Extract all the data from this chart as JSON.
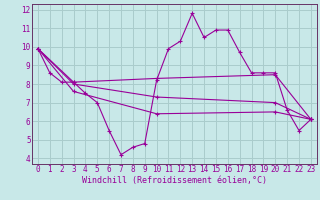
{
  "xlabel": "Windchill (Refroidissement éolien,°C)",
  "background_color": "#c8e8e8",
  "grid_color": "#aacccc",
  "line_color": "#990099",
  "spine_color": "#663366",
  "xlim": [
    -0.5,
    23.5
  ],
  "ylim": [
    3.7,
    12.3
  ],
  "yticks": [
    4,
    5,
    6,
    7,
    8,
    9,
    10,
    11,
    12
  ],
  "xticks": [
    0,
    1,
    2,
    3,
    4,
    5,
    6,
    7,
    8,
    9,
    10,
    11,
    12,
    13,
    14,
    15,
    16,
    17,
    18,
    19,
    20,
    21,
    22,
    23
  ],
  "lines": [
    {
      "x": [
        0,
        1,
        2,
        3,
        4,
        5,
        6,
        7,
        8,
        9,
        10,
        11,
        12,
        13,
        14,
        15,
        16,
        17,
        18,
        19,
        20,
        21,
        22,
        23
      ],
      "y": [
        9.9,
        8.6,
        8.1,
        8.1,
        7.5,
        7.0,
        5.5,
        4.2,
        4.6,
        4.8,
        8.2,
        9.9,
        10.3,
        11.8,
        10.5,
        10.9,
        10.9,
        9.7,
        8.6,
        8.6,
        8.6,
        6.6,
        5.5,
        6.1
      ]
    },
    {
      "x": [
        0,
        3,
        10,
        20,
        23
      ],
      "y": [
        9.9,
        8.1,
        8.3,
        8.5,
        6.1
      ]
    },
    {
      "x": [
        0,
        3,
        10,
        20,
        23
      ],
      "y": [
        9.9,
        8.0,
        7.3,
        7.0,
        6.1
      ]
    },
    {
      "x": [
        0,
        3,
        10,
        20,
        23
      ],
      "y": [
        9.9,
        7.6,
        6.4,
        6.5,
        6.1
      ]
    }
  ],
  "tick_fontsize": 5.5,
  "xlabel_fontsize": 6.0
}
